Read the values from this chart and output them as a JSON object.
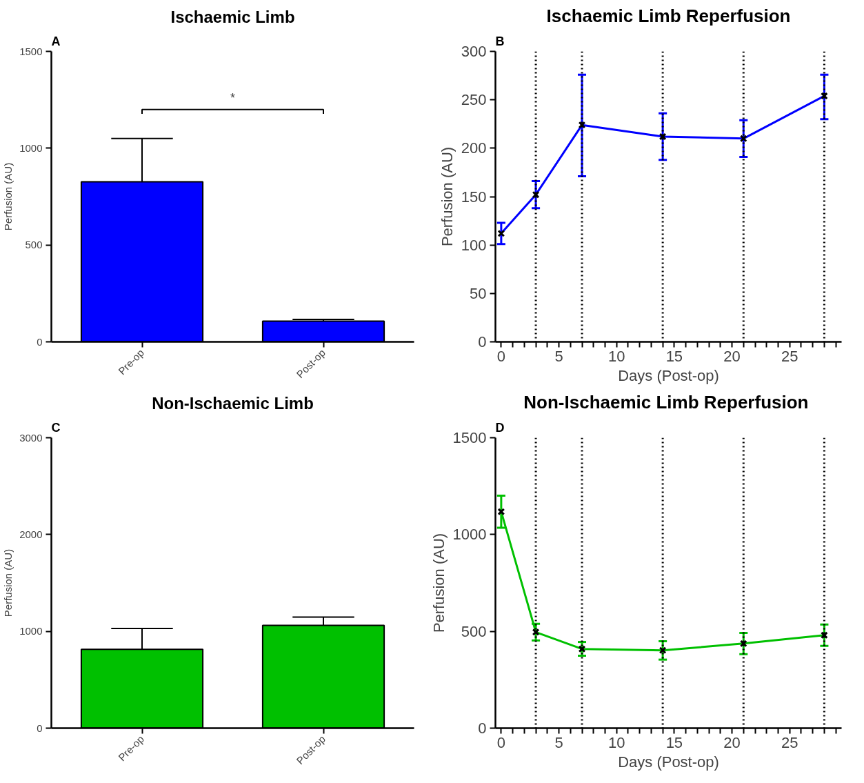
{
  "chart_data": [
    {
      "type": "bar",
      "title": "Ischaemic Limb",
      "ylabel": "Perfusion (AU)",
      "categories": [
        "Pre-op",
        "Post-op"
      ],
      "color": "#0000ff",
      "values": [
        827,
        107
      ],
      "errors": [
        [
          827,
          1050
        ],
        [
          107,
          116
        ]
      ],
      "ylim": [
        0,
        1500
      ],
      "yticks": [
        0,
        500,
        1000,
        1500
      ],
      "annotations": [
        "A",
        "*"
      ]
    },
    {
      "type": "line",
      "title": "Ischaemic Limb Reperfusion",
      "xlabel": "Days (Post-op)",
      "ylabel": "Perfusion (AU)",
      "x": [
        0,
        3,
        7,
        14,
        21,
        28
      ],
      "series": [
        {
          "color": "#0000ff",
          "values": [
            112,
            152,
            224,
            212,
            210,
            254
          ],
          "errors": [
            [
              101,
              123
            ],
            [
              138,
              166
            ],
            [
              171,
              276
            ],
            [
              188,
              236
            ],
            [
              191,
              229
            ],
            [
              230,
              276
            ]
          ]
        }
      ],
      "marker": "cross",
      "xlim": [
        -0.5,
        29.5
      ],
      "ylim": [
        0,
        300
      ],
      "xticks": [
        0,
        {
          "value": 1,
          "label": null
        },
        {
          "value": 2,
          "label": null
        },
        {
          "value": 3,
          "label": null
        },
        {
          "value": 4,
          "label": null
        },
        5,
        {
          "value": 6,
          "label": null
        },
        {
          "value": 7,
          "label": null
        },
        {
          "value": 8,
          "label": null
        },
        {
          "value": 9,
          "label": null
        },
        10,
        {
          "value": 11,
          "label": null
        },
        {
          "value": 12,
          "label": null
        },
        {
          "value": 13,
          "label": null
        },
        {
          "value": 14,
          "label": null
        },
        15,
        {
          "value": 16,
          "label": null
        },
        {
          "value": 17,
          "label": null
        },
        {
          "value": 18,
          "label": null
        },
        {
          "value": 19,
          "label": null
        },
        20,
        {
          "value": 21,
          "label": null
        },
        {
          "value": 22,
          "label": null
        },
        {
          "value": 23,
          "label": null
        },
        {
          "value": 24,
          "label": null
        },
        25,
        {
          "value": 26,
          "label": null
        },
        {
          "value": 27,
          "label": null
        },
        {
          "value": 28,
          "label": null
        },
        {
          "value": 29,
          "label": null
        }
      ],
      "yticks": [
        0,
        50,
        100,
        150,
        200,
        250,
        300
      ],
      "ref_lines": [
        {
          "axis": "x",
          "value": 3,
          "color": "#000000",
          "line_style": "dotted"
        },
        {
          "axis": "x",
          "value": 7,
          "color": "#000000",
          "line_style": "dotted"
        },
        {
          "axis": "x",
          "value": 14,
          "color": "#000000",
          "line_style": "dotted"
        },
        {
          "axis": "x",
          "value": 21,
          "color": "#000000",
          "line_style": "dotted"
        },
        {
          "axis": "x",
          "value": 28,
          "color": "#000000",
          "line_style": "dotted"
        }
      ],
      "annotations": [
        "B"
      ]
    },
    {
      "type": "bar",
      "title": "Non-Ischaemic Limb",
      "ylabel": "Perfusion (AU)",
      "categories": [
        "Pre-op",
        "Post-op"
      ],
      "color": "#00c000",
      "values": [
        814,
        1061
      ],
      "errors": [
        [
          814,
          1029
        ],
        [
          1061,
          1147
        ]
      ],
      "ylim": [
        0,
        3000
      ],
      "yticks": [
        0,
        1000,
        2000,
        3000
      ],
      "annotations": [
        "C"
      ]
    },
    {
      "type": "line",
      "title": "Non-Ischaemic Limb  Reperfusion",
      "xlabel": "Days (Post-op)",
      "ylabel": "Perfusion (AU)",
      "x": [
        0,
        3,
        7,
        14,
        21,
        28
      ],
      "series": [
        {
          "color": "#00c000",
          "values": [
            1118,
            496,
            409,
            402,
            437,
            480
          ],
          "errors": [
            [
              1035,
              1201
            ],
            [
              453,
              539
            ],
            [
              374,
              445
            ],
            [
              354,
              449
            ],
            [
              382,
              492
            ],
            [
              425,
              535
            ]
          ]
        }
      ],
      "marker": "cross",
      "xlim": [
        -0.5,
        29.5
      ],
      "ylim": [
        0,
        1500
      ],
      "xticks": [
        0,
        {
          "value": 1,
          "label": null
        },
        {
          "value": 2,
          "label": null
        },
        {
          "value": 3,
          "label": null
        },
        {
          "value": 4,
          "label": null
        },
        5,
        {
          "value": 6,
          "label": null
        },
        {
          "value": 7,
          "label": null
        },
        {
          "value": 8,
          "label": null
        },
        {
          "value": 9,
          "label": null
        },
        10,
        {
          "value": 11,
          "label": null
        },
        {
          "value": 12,
          "label": null
        },
        {
          "value": 13,
          "label": null
        },
        {
          "value": 14,
          "label": null
        },
        15,
        {
          "value": 16,
          "label": null
        },
        {
          "value": 17,
          "label": null
        },
        {
          "value": 18,
          "label": null
        },
        {
          "value": 19,
          "label": null
        },
        20,
        {
          "value": 21,
          "label": null
        },
        {
          "value": 22,
          "label": null
        },
        {
          "value": 23,
          "label": null
        },
        {
          "value": 24,
          "label": null
        },
        25,
        {
          "value": 26,
          "label": null
        },
        {
          "value": 27,
          "label": null
        },
        {
          "value": 28,
          "label": null
        },
        {
          "value": 29,
          "label": null
        }
      ],
      "yticks": [
        0,
        500,
        1000,
        1500
      ],
      "ref_lines": [
        {
          "axis": "x",
          "value": 3,
          "color": "#000000",
          "line_style": "dotted"
        },
        {
          "axis": "x",
          "value": 7,
          "color": "#000000",
          "line_style": "dotted"
        },
        {
          "axis": "x",
          "value": 14,
          "color": "#000000",
          "line_style": "dotted"
        },
        {
          "axis": "x",
          "value": 21,
          "color": "#000000",
          "line_style": "dotted"
        },
        {
          "axis": "x",
          "value": 28,
          "color": "#000000",
          "line_style": "dotted"
        }
      ],
      "annotations": [
        "D"
      ]
    }
  ]
}
